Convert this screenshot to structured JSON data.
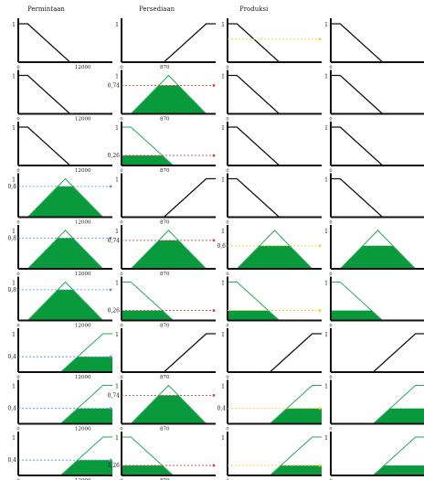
{
  "headers": {
    "permintaan": "Permintaan",
    "persediaan": "Persediaan",
    "produksi": "Produksi"
  },
  "axis": {
    "one": "1",
    "zero": "0",
    "demand_max": "12000",
    "stock_max": "870"
  },
  "colors": {
    "fill": "#0a9a3e",
    "line": "#111111",
    "blue_dash": "#5a8fd8",
    "red_dash": "#d84040",
    "yellow_dash": "#e8d230",
    "background": "#ffffff"
  },
  "membership_columns": [
    "permintaan",
    "persediaan",
    "produksi",
    "produksi-output"
  ],
  "rows": [
    {
      "cells": [
        {
          "shape": "down",
          "fill": null,
          "alpha_label": ""
        },
        {
          "shape": "up",
          "fill": null,
          "alpha_label": ""
        },
        {
          "shape": "down",
          "fill": null,
          "alpha_label": "",
          "dash": "yellow"
        },
        {
          "shape": "down",
          "fill": null,
          "alpha_label": ""
        }
      ]
    },
    {
      "cells": [
        {
          "shape": "down",
          "fill": null,
          "alpha_label": ""
        },
        {
          "shape": "tri",
          "fill": 0.74,
          "alpha_label": "0,74",
          "dash": "red"
        },
        {
          "shape": "down",
          "fill": null,
          "alpha_label": ""
        },
        {
          "shape": "down",
          "fill": null,
          "alpha_label": ""
        }
      ]
    },
    {
      "cells": [
        {
          "shape": "down",
          "fill": null,
          "alpha_label": ""
        },
        {
          "shape": "down",
          "fill": 0.26,
          "alpha_label": "0,26",
          "dash": "red"
        },
        {
          "shape": "down",
          "fill": null,
          "alpha_label": ""
        },
        {
          "shape": "down",
          "fill": null,
          "alpha_label": ""
        }
      ]
    },
    {
      "cells": [
        {
          "shape": "tri",
          "fill": 0.8,
          "alpha_label": "0,8",
          "dash": "blue"
        },
        {
          "shape": "up",
          "fill": null,
          "alpha_label": ""
        },
        {
          "shape": "down",
          "fill": null,
          "alpha_label": ""
        },
        {
          "shape": "down",
          "fill": null,
          "alpha_label": ""
        }
      ]
    },
    {
      "cells": [
        {
          "shape": "tri",
          "fill": 0.8,
          "alpha_label": "0,8",
          "dash": "blue"
        },
        {
          "shape": "tri",
          "fill": 0.74,
          "alpha_label": "0,74",
          "dash": "red"
        },
        {
          "shape": "tri",
          "fill": 0.6,
          "alpha_label": "0,6",
          "dash": "yellow"
        },
        {
          "shape": "tri",
          "fill": 0.6,
          "alpha_label": ""
        }
      ]
    },
    {
      "cells": [
        {
          "shape": "tri",
          "fill": 0.8,
          "alpha_label": "0,8",
          "dash": "blue"
        },
        {
          "shape": "down",
          "fill": 0.26,
          "alpha_label": "0,26",
          "dash": "red"
        },
        {
          "shape": "down",
          "fill": 0.26,
          "alpha_label": "",
          "dash": "yellow"
        },
        {
          "shape": "down",
          "fill": 0.26,
          "alpha_label": ""
        }
      ]
    },
    {
      "cells": [
        {
          "shape": "up",
          "fill": 0.4,
          "alpha_label": "0,4",
          "dash": "blue"
        },
        {
          "shape": "up",
          "fill": null,
          "alpha_label": ""
        },
        {
          "shape": "up",
          "fill": null,
          "alpha_label": ""
        },
        {
          "shape": "up",
          "fill": null,
          "alpha_label": ""
        }
      ]
    },
    {
      "cells": [
        {
          "shape": "up",
          "fill": 0.4,
          "alpha_label": "0,4",
          "dash": "blue"
        },
        {
          "shape": "tri",
          "fill": 0.74,
          "alpha_label": "0,74",
          "dash": "red"
        },
        {
          "shape": "up",
          "fill": 0.4,
          "alpha_label": "0,4",
          "dash": "yellow"
        },
        {
          "shape": "up",
          "fill": 0.4,
          "alpha_label": ""
        }
      ]
    },
    {
      "cells": [
        {
          "shape": "up",
          "fill": 0.4,
          "alpha_label": "0,4",
          "dash": "blue"
        },
        {
          "shape": "down",
          "fill": 0.26,
          "alpha_label": "0,26",
          "dash": "red"
        },
        {
          "shape": "up",
          "fill": 0.26,
          "alpha_label": "",
          "dash": "yellow"
        },
        {
          "shape": "up",
          "fill": 0.26,
          "alpha_label": ""
        }
      ]
    }
  ]
}
